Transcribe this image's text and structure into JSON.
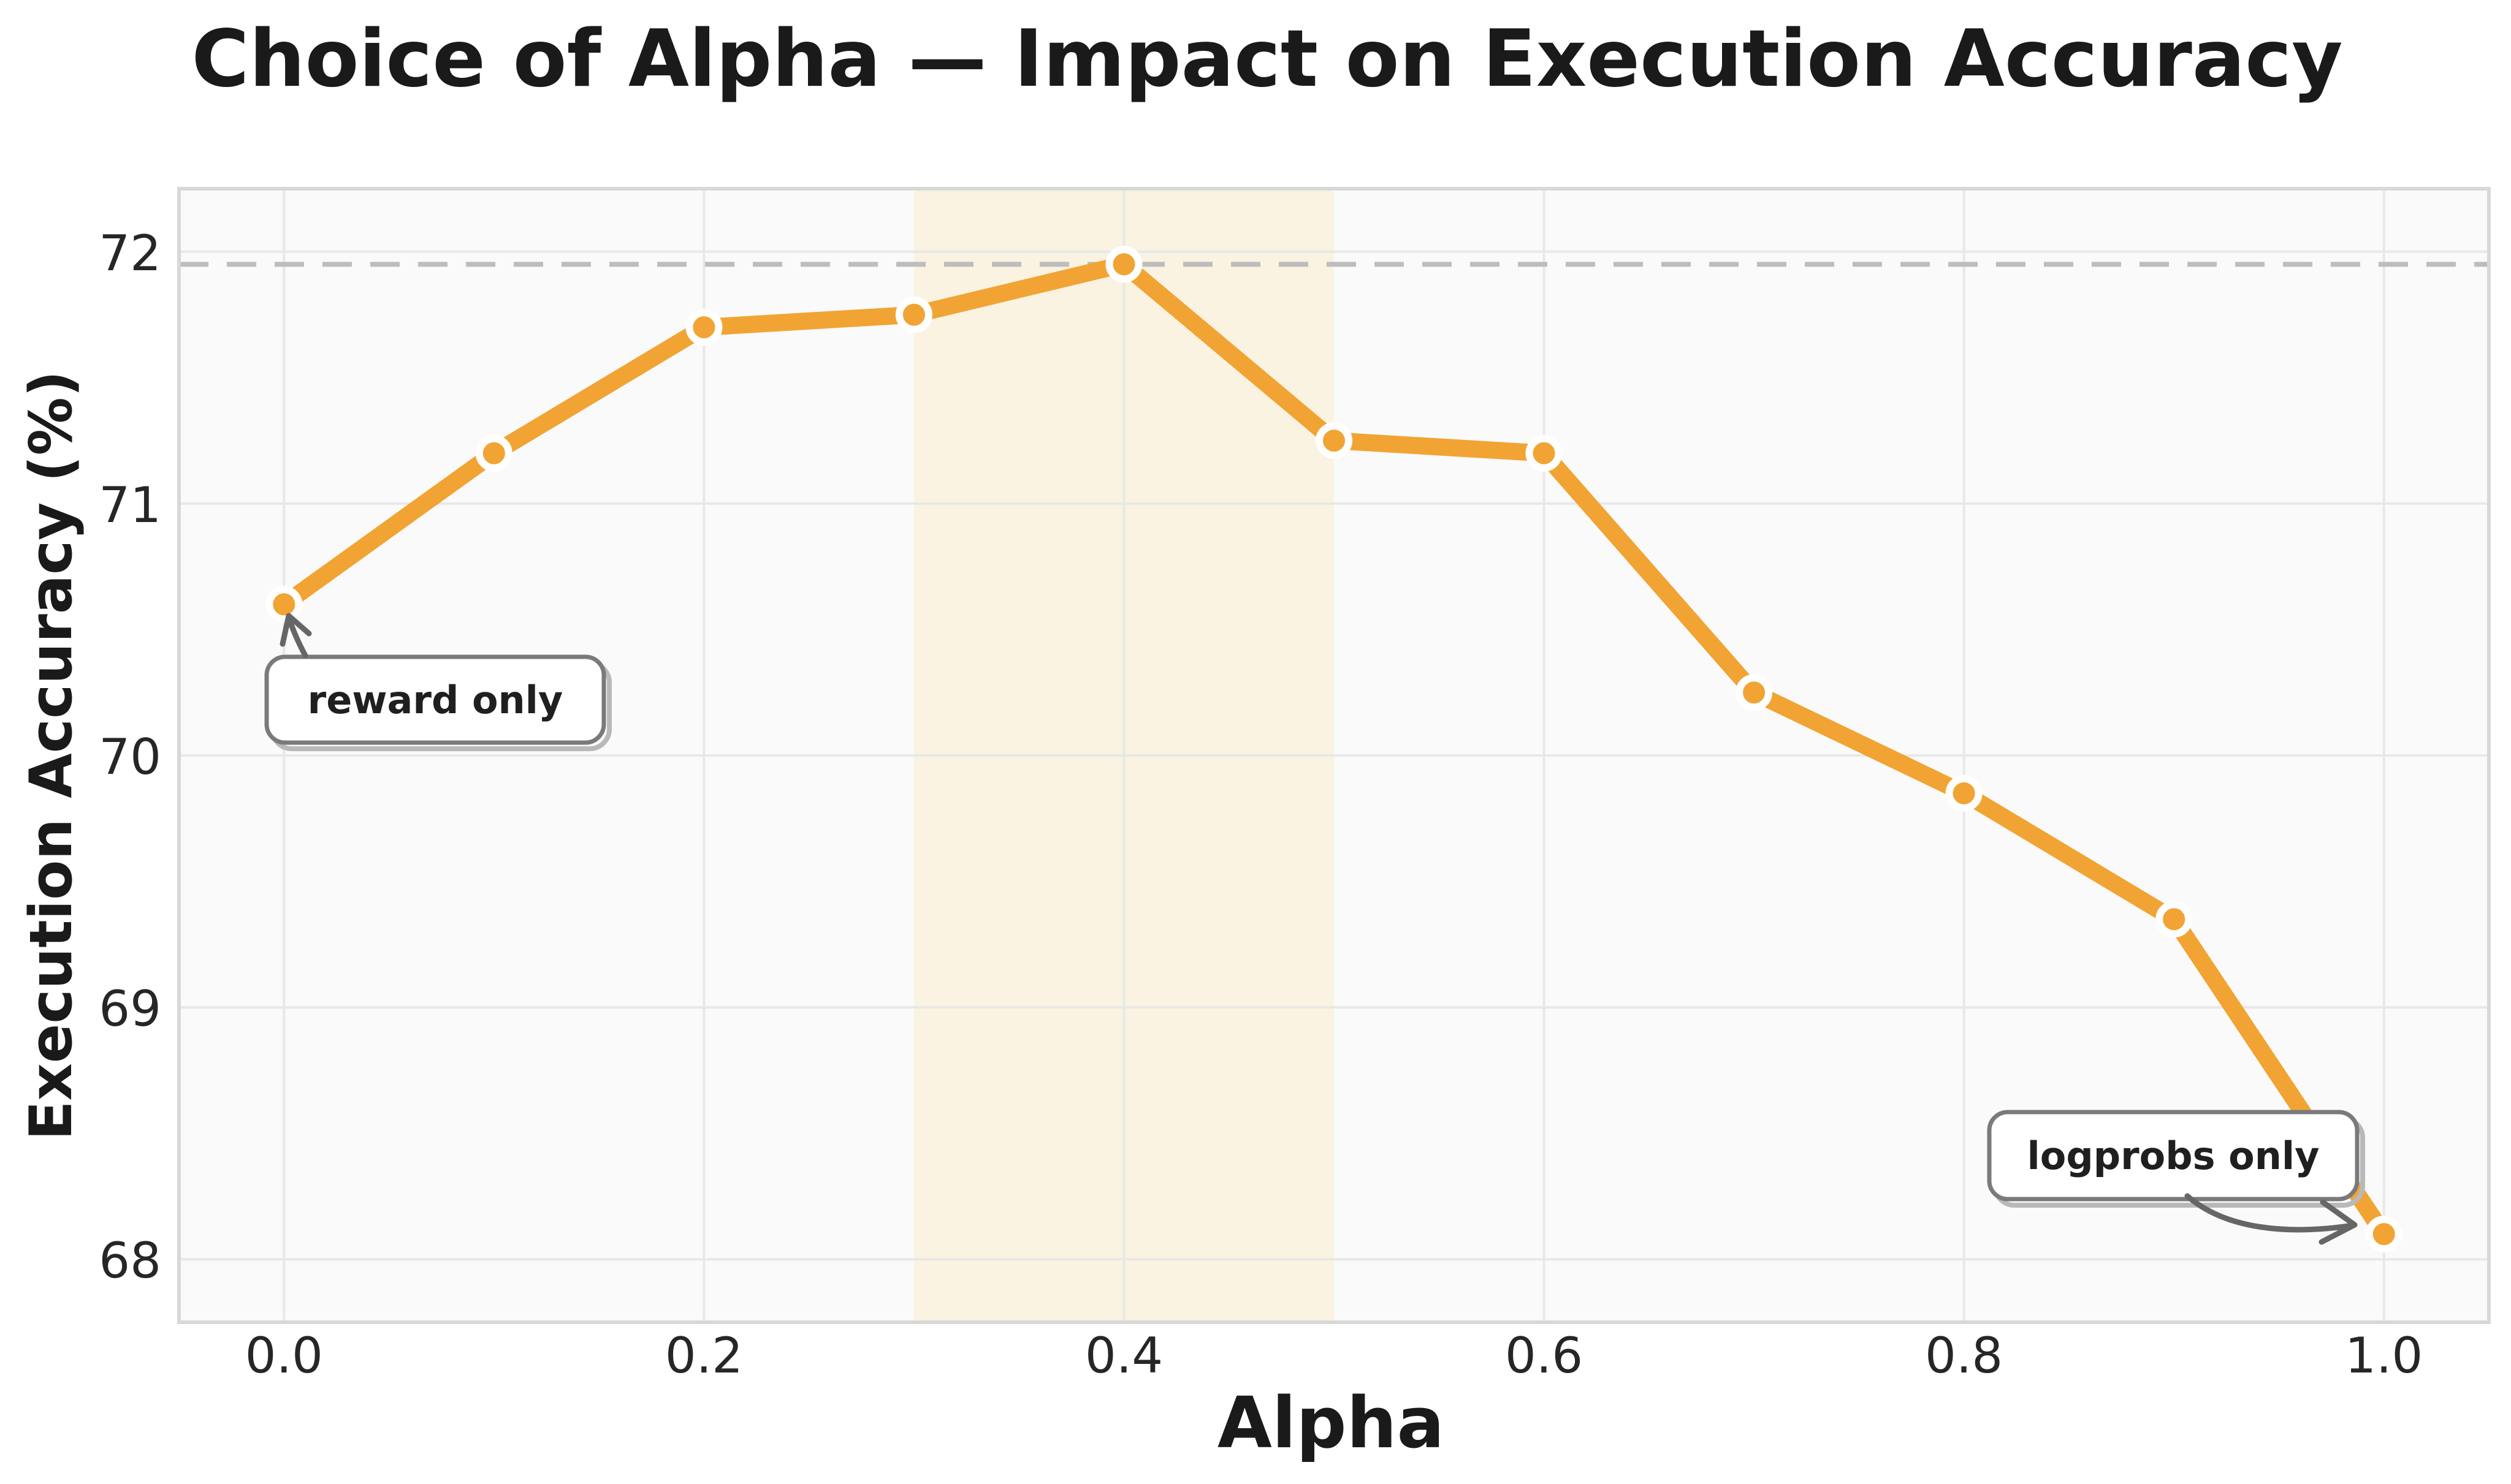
{
  "title": "Choice of Alpha — Impact on Execution Accuracy",
  "chart_data": {
    "type": "line",
    "title": "Choice of Alpha — Impact on Execution Accuracy",
    "xlabel": "Alpha",
    "ylabel": "Execution Accuracy (%)",
    "x": [
      0.0,
      0.1,
      0.2,
      0.3,
      0.4,
      0.5,
      0.6,
      0.7,
      0.8,
      0.9,
      1.0
    ],
    "values": [
      70.6,
      71.2,
      71.7,
      71.75,
      71.95,
      71.25,
      71.2,
      70.25,
      69.85,
      69.35,
      68.1
    ],
    "series_name": "Execution Accuracy",
    "xlim": [
      -0.05,
      1.05
    ],
    "ylim": [
      67.75,
      72.25
    ],
    "xticks": [
      "0.0",
      "0.2",
      "0.4",
      "0.6",
      "0.8",
      "1.0"
    ],
    "yticks": [
      "68",
      "69",
      "70",
      "71",
      "72"
    ],
    "grid": true,
    "legend": "none",
    "reference_line_y": 71.95,
    "shaded_band": {
      "x_start": 0.3,
      "x_end": 0.5,
      "color": "#faf3e2"
    },
    "annotations": [
      {
        "label": "reward only",
        "x": 0.0,
        "y": 70.6
      },
      {
        "label": "logprobs only",
        "x": 1.0,
        "y": 68.1
      }
    ],
    "colors": {
      "line": "#f1a433",
      "marker": "#f1a433",
      "marker_edge": "#ffffff",
      "plot_background": "#fafafa",
      "figure_background": "#ffffff",
      "gridline": "#e8e8e8",
      "spine": "#d8d8d8",
      "dashed_reference": "#bdbdbd",
      "annotation_border": "#7a7a7a",
      "annotation_arrow": "#666666",
      "text": "#1a1a1a"
    }
  }
}
